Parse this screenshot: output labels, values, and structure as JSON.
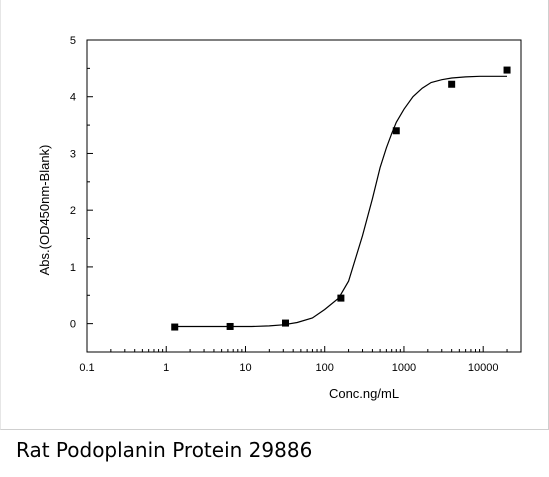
{
  "caption": "Rat Podoplanin Protein 29886",
  "chart_data": {
    "type": "scatter",
    "title": "",
    "xlabel": "Conc.ng/mL",
    "ylabel": "Abs.(OD450nm-Blank)",
    "xscale": "log",
    "xlim": [
      0.1,
      30000
    ],
    "ylim": [
      -0.5,
      5
    ],
    "xticks": [
      0.1,
      1,
      10,
      100,
      1000,
      10000
    ],
    "xtick_labels": [
      "0.1",
      "1",
      "10",
      "100",
      "1000",
      "10000"
    ],
    "yticks": [
      0,
      1,
      2,
      3,
      4,
      5
    ],
    "ytick_labels": [
      "0",
      "1",
      "2",
      "3",
      "4",
      "5"
    ],
    "grid": false,
    "series": [
      {
        "x": [
          1.28,
          6.4,
          32,
          160,
          800,
          4000,
          20000
        ],
        "y": [
          -0.06,
          -0.05,
          0.01,
          0.45,
          3.4,
          4.22,
          4.47
        ],
        "marker": "square",
        "color": "#000000"
      }
    ],
    "fit_curve": {
      "x": [
        1.28,
        2,
        3,
        5,
        8,
        12,
        20,
        30,
        45,
        70,
        100,
        150,
        200,
        300,
        400,
        500,
        600,
        700,
        800,
        1000,
        1300,
        1700,
        2200,
        3000,
        4000,
        6000,
        9000,
        13000,
        20000
      ],
      "y": [
        -0.05,
        -0.05,
        -0.05,
        -0.05,
        -0.05,
        -0.05,
        -0.04,
        -0.02,
        0.02,
        0.1,
        0.25,
        0.45,
        0.75,
        1.55,
        2.2,
        2.75,
        3.1,
        3.35,
        3.55,
        3.78,
        4.0,
        4.15,
        4.25,
        4.3,
        4.33,
        4.35,
        4.36,
        4.36,
        4.36
      ],
      "color": "#000000"
    }
  }
}
